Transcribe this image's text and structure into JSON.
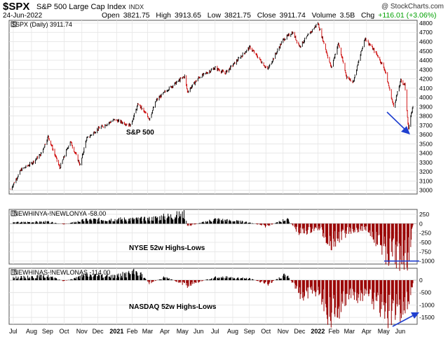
{
  "header": {
    "symbol": "$SPX",
    "name": "S&P 500 Large Cap Index",
    "exchange": "INDX",
    "date": "24-Jun-2022",
    "credit": "@ StockCharts.com",
    "open_label": "Open",
    "open": "3821.75",
    "high_label": "High",
    "high": "3913.65",
    "low_label": "Low",
    "low": "3821.75",
    "close_label": "Close",
    "close": "3911.74",
    "volume_label": "Volume",
    "volume": "3.5B",
    "chg_label": "Chg",
    "chg": "+116.01 (+3.06%)",
    "accent_up": "#00a000"
  },
  "x_axis": {
    "ticks": [
      "Jul",
      "Aug",
      "Sep",
      "Oct",
      "Nov",
      "Dec",
      "2021",
      "Feb",
      "Mar",
      "Apr",
      "May",
      "Jun",
      "Jul",
      "Aug",
      "Sep",
      "Oct",
      "Nov",
      "Dec",
      "2022",
      "Feb",
      "Mar",
      "Apr",
      "May",
      "Jun"
    ],
    "bold_ticks": [
      "2021",
      "2022"
    ]
  },
  "chart_data": [
    {
      "type": "line",
      "style": "ohlc-bars",
      "legend": "$SPX (Daily) 3911.74",
      "annotation": "S&P 500",
      "y_ticks": [
        3000,
        3100,
        3200,
        3300,
        3400,
        3500,
        3600,
        3700,
        3800,
        3900,
        4000,
        4100,
        4200,
        4300,
        4400,
        4500,
        4600,
        4700,
        4800
      ],
      "ylim": [
        2960,
        4830
      ],
      "grid": true,
      "up_color": "#000000",
      "down_color": "#cc0000",
      "x": [
        "2020-06-26",
        "2020-07-15",
        "2020-08-03",
        "2020-08-20",
        "2020-09-02",
        "2020-09-23",
        "2020-10-12",
        "2020-10-30",
        "2020-11-10",
        "2020-12-01",
        "2020-12-31",
        "2021-01-29",
        "2021-02-12",
        "2021-03-04",
        "2021-03-17",
        "2021-04-05",
        "2021-05-07",
        "2021-05-12",
        "2021-06-01",
        "2021-07-01",
        "2021-07-19",
        "2021-08-31",
        "2021-09-02",
        "2021-10-04",
        "2021-11-01",
        "2021-11-18",
        "2021-12-01",
        "2022-01-03",
        "2022-01-27",
        "2022-02-09",
        "2022-02-24",
        "2022-03-08",
        "2022-03-29",
        "2022-04-20",
        "2022-05-04",
        "2022-05-20",
        "2022-06-02",
        "2022-06-09",
        "2022-06-16",
        "2022-06-24"
      ],
      "values": [
        3010,
        3220,
        3290,
        3390,
        3580,
        3240,
        3530,
        3270,
        3550,
        3660,
        3760,
        3700,
        3930,
        3770,
        3970,
        4080,
        4230,
        4060,
        4210,
        4320,
        4260,
        4530,
        4540,
        4300,
        4620,
        4700,
        4550,
        4800,
        4320,
        4580,
        4220,
        4170,
        4640,
        4460,
        4300,
        3900,
        4180,
        4140,
        3660,
        3912
      ]
    },
    {
      "type": "bar",
      "legend": "!NEWHINYA-!NEWLONYA -58.00",
      "annotation": "NYSE 52w Highs-Lows",
      "y_ticks": [
        250,
        0,
        -250,
        -500,
        -750,
        -1000
      ],
      "ylim": [
        -1080,
        380
      ],
      "positive_color": "#000000",
      "negative_color": "#990000",
      "x": [
        "2020-07-01",
        "2020-09-01",
        "2020-10-01",
        "2020-11-10",
        "2021-01-01",
        "2021-03-01",
        "2021-05-07",
        "2021-05-12",
        "2021-07-01",
        "2021-09-01",
        "2021-10-01",
        "2021-11-08",
        "2021-12-01",
        "2022-01-05",
        "2022-01-25",
        "2022-03-01",
        "2022-04-01",
        "2022-05-12",
        "2022-06-16",
        "2022-06-24"
      ],
      "values": [
        40,
        60,
        -20,
        120,
        140,
        150,
        300,
        -80,
        140,
        40,
        -90,
        150,
        -300,
        -150,
        -600,
        -230,
        -150,
        -1000,
        -1030,
        -58
      ],
      "annotation_line_y": -1000
    },
    {
      "type": "bar",
      "legend": "!NEWHINAS-!NEWLONAS -114.00",
      "annotation": "NASDAQ 52w Highs-Lows",
      "y_ticks": [
        0,
        -500,
        -1000,
        -1500
      ],
      "ylim": [
        -1780,
        480
      ],
      "positive_color": "#000000",
      "negative_color": "#990000",
      "x": [
        "2020-07-01",
        "2020-09-01",
        "2020-10-01",
        "2020-11-10",
        "2021-01-01",
        "2021-02-12",
        "2021-03-04",
        "2021-04-01",
        "2021-05-12",
        "2021-07-01",
        "2021-09-01",
        "2021-10-04",
        "2021-11-08",
        "2021-12-01",
        "2022-01-05",
        "2022-01-25",
        "2022-03-01",
        "2022-04-01",
        "2022-05-12",
        "2022-06-16",
        "2022-06-24"
      ],
      "values": [
        120,
        200,
        -50,
        250,
        200,
        420,
        -150,
        150,
        -250,
        150,
        80,
        -200,
        300,
        -700,
        -500,
        -1700,
        -850,
        -650,
        -1650,
        -1200,
        -114
      ]
    }
  ]
}
